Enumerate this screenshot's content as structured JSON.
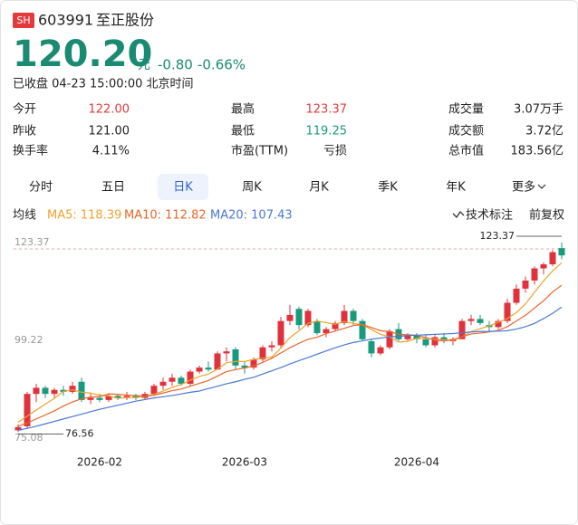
{
  "header": {
    "badge": "SH",
    "code": "603991",
    "name": "至正股份",
    "price": "120.20",
    "unit": "元",
    "change": "-0.80",
    "change_pct": "-0.66%",
    "status": "已收盘 04-23 15:00:00 北京时间"
  },
  "stats": [
    [
      {
        "label": "今开",
        "value": "122.00",
        "color": "#e4393c"
      },
      {
        "label": "最高",
        "value": "123.37",
        "color": "#e4393c"
      },
      {
        "label": "成交量",
        "value": "3.07万手"
      }
    ],
    [
      {
        "label": "昨收",
        "value": "121.00"
      },
      {
        "label": "最低",
        "value": "119.25",
        "color": "#1a9a7c"
      },
      {
        "label": "成交额",
        "value": "3.72亿"
      }
    ],
    [
      {
        "label": "换手率",
        "value": "4.11%"
      },
      {
        "label": "市盈(TTM)",
        "value": "亏损"
      },
      {
        "label": "总市值",
        "value": "183.56亿"
      }
    ]
  ],
  "tabs": [
    "分时",
    "五日",
    "日K",
    "周K",
    "月K",
    "季K",
    "年K",
    "更多"
  ],
  "active_tab": 2,
  "indicator_label": "均线",
  "tools": [
    "技术标注",
    "前复权"
  ],
  "chart_data": {
    "type": "candlestick",
    "up_color": "#e0323d",
    "down_color": "#1a9a7c",
    "categories": [
      null,
      null,
      null,
      null,
      null,
      null,
      null,
      null,
      null,
      "2026-02",
      null,
      null,
      null,
      null,
      null,
      null,
      null,
      null,
      null,
      null,
      null,
      null,
      null,
      null,
      null,
      "2026-03",
      null,
      null,
      null,
      null,
      null,
      null,
      null,
      null,
      null,
      null,
      null,
      null,
      null,
      null,
      null,
      null,
      null,
      null,
      "2026-04",
      null,
      null,
      null,
      null,
      null,
      null,
      null,
      null,
      null,
      null,
      null,
      null,
      null,
      null,
      null,
      null
    ],
    "open": [
      77,
      78,
      86,
      87.5,
      86,
      87,
      86.5,
      89,
      84.5,
      85,
      84.5,
      85.5,
      85,
      85.5,
      85,
      86,
      88,
      89,
      90,
      88.5,
      91.5,
      92.5,
      92,
      96,
      97,
      93,
      92.5,
      94.5,
      97.5,
      98,
      104,
      107,
      103,
      104,
      101,
      102,
      103.5,
      106.5,
      104,
      99,
      96,
      97.5,
      102,
      99.5,
      100.5,
      99.5,
      98,
      100,
      99,
      99.5,
      104,
      104.5,
      103,
      102.5,
      104,
      108.5,
      112,
      114,
      117,
      118,
      122
    ],
    "high": [
      78.5,
      86.5,
      88.5,
      88,
      87.5,
      88,
      89,
      90,
      86,
      86,
      86,
      86,
      86.5,
      86,
      86.5,
      88.5,
      90,
      91,
      90.5,
      92,
      93,
      94,
      96.5,
      97.5,
      97.5,
      94,
      95,
      98,
      99,
      105,
      108,
      107.5,
      107,
      104.5,
      102.5,
      104,
      108,
      107,
      104.5,
      99.5,
      98,
      102,
      103.5,
      101,
      101,
      100.5,
      100.5,
      101,
      100,
      104.5,
      105.5,
      105.5,
      104,
      104.5,
      109.5,
      113,
      115,
      117.5,
      118.5,
      121.5,
      123.37
    ],
    "low": [
      76.56,
      77.5,
      84,
      85,
      85,
      85.5,
      86,
      84,
      83.5,
      84,
      84,
      84.5,
      84.5,
      84.5,
      84.5,
      85.5,
      87,
      88,
      88,
      88,
      91,
      91.5,
      92,
      94,
      92,
      91,
      92,
      94,
      96.5,
      97.5,
      103,
      102,
      102.5,
      100.5,
      100,
      101.5,
      103,
      103,
      99,
      95,
      95.5,
      97,
      99,
      99,
      98.5,
      97.5,
      97.5,
      98.5,
      98,
      99.5,
      103,
      103,
      101.5,
      102,
      103.5,
      108,
      111,
      113,
      115.5,
      117.5,
      119.25
    ],
    "close": [
      77.8,
      86,
      87.5,
      86,
      87,
      86.5,
      88,
      84.5,
      85,
      84.5,
      85.5,
      85,
      85.5,
      85,
      86,
      88,
      89,
      90,
      88.5,
      91.5,
      92.5,
      92,
      96,
      96.5,
      93,
      92.5,
      94.5,
      97.5,
      98,
      104,
      105.5,
      103,
      106.5,
      101,
      102,
      103.5,
      106.5,
      104,
      99.5,
      96,
      97.5,
      101.5,
      99.5,
      100.5,
      99.5,
      98,
      100,
      99,
      99.5,
      104,
      104.5,
      103.5,
      102.5,
      104,
      108.5,
      112,
      114,
      117,
      118,
      121,
      120.2
    ],
    "series": [
      {
        "name": "MA5: 118.39",
        "color": "#f0a22e",
        "values": [
          79,
          80.5,
          82,
          83.5,
          84.9,
          86.6,
          87,
          86.4,
          86.2,
          85.7,
          85.5,
          84.9,
          85.1,
          85.1,
          85.4,
          85.9,
          86.7,
          87.6,
          88.3,
          89.4,
          90.3,
          90.9,
          92.1,
          93.7,
          94,
          94,
          94.5,
          94.8,
          95.1,
          97.3,
          99.9,
          101.6,
          103.4,
          104,
          103.6,
          103.2,
          103.9,
          103.4,
          103.1,
          101.9,
          100.7,
          100.1,
          98.8,
          99,
          99.7,
          99.8,
          99.5,
          99.4,
          99.2,
          100.1,
          101.4,
          102.1,
          102.8,
          103.7,
          104.6,
          106.1,
          108.2,
          111.1,
          113.9,
          116.4,
          118.39
        ]
      },
      {
        "name": "MA10: 112.82",
        "color": "#e8662a",
        "values": [
          78,
          78.8,
          79.8,
          80.8,
          81.8,
          83,
          84,
          84.8,
          85.2,
          85.3,
          86,
          85.9,
          85.7,
          85.6,
          85.4,
          85.7,
          86.2,
          86.8,
          87.2,
          87.9,
          88.6,
          89.3,
          90.4,
          91.5,
          92,
          92.4,
          92.9,
          93.8,
          94.8,
          96.1,
          97.4,
          98.5,
          99.5,
          100,
          100.9,
          101.5,
          102.2,
          102.9,
          103.1,
          102.4,
          101.6,
          101.4,
          100.7,
          100.6,
          100.5,
          99.9,
          99.3,
          99.1,
          99.4,
          100.1,
          100.8,
          101,
          101.3,
          101.7,
          102.6,
          104,
          105.4,
          107.2,
          109,
          111.2,
          112.82
        ]
      },
      {
        "name": "MA20: 107.43",
        "color": "#4a78d2",
        "values": [
          77,
          77.5,
          78,
          78.6,
          79.2,
          79.8,
          80.4,
          81,
          81.6,
          82.2,
          82.7,
          83.2,
          83.7,
          84.2,
          84.6,
          85,
          85.3,
          85.6,
          86,
          86.4,
          86.7,
          87.3,
          87.9,
          88.5,
          89,
          89.6,
          90.1,
          90.9,
          91.7,
          92.5,
          93.4,
          94.2,
          95,
          95.8,
          96.6,
          97.4,
          98.1,
          98.7,
          99.1,
          99.5,
          99.8,
          100.1,
          100.2,
          100.4,
          100.5,
          100.6,
          100.7,
          100.8,
          100.9,
          101.1,
          101.3,
          101.4,
          101.4,
          101.5,
          101.6,
          102,
          102.6,
          103.4,
          104.6,
          105.9,
          107.43
        ]
      }
    ],
    "ylim": [
      75.08,
      123.37
    ],
    "yticks": [
      75.08,
      99.22,
      123.37
    ]
  }
}
